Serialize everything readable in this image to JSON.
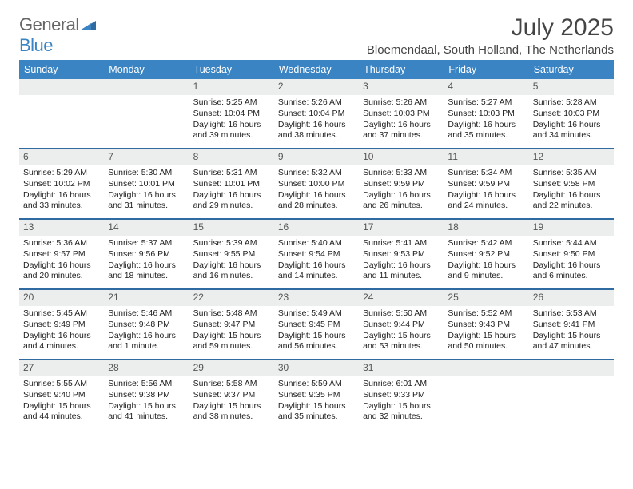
{
  "brand": {
    "general": "General",
    "blue": "Blue"
  },
  "title": "July 2025",
  "location": "Bloemendaal, South Holland, The Netherlands",
  "colors": {
    "header_blue": "#3b84c4",
    "divider": "#2f6aa0",
    "daynum_bg": "#eceded"
  },
  "dow": [
    "Sunday",
    "Monday",
    "Tuesday",
    "Wednesday",
    "Thursday",
    "Friday",
    "Saturday"
  ],
  "weeks": [
    [
      {
        "n": "",
        "sr": "",
        "ss": "",
        "dl1": "",
        "dl2": ""
      },
      {
        "n": "",
        "sr": "",
        "ss": "",
        "dl1": "",
        "dl2": ""
      },
      {
        "n": "1",
        "sr": "Sunrise: 5:25 AM",
        "ss": "Sunset: 10:04 PM",
        "dl1": "Daylight: 16 hours",
        "dl2": "and 39 minutes."
      },
      {
        "n": "2",
        "sr": "Sunrise: 5:26 AM",
        "ss": "Sunset: 10:04 PM",
        "dl1": "Daylight: 16 hours",
        "dl2": "and 38 minutes."
      },
      {
        "n": "3",
        "sr": "Sunrise: 5:26 AM",
        "ss": "Sunset: 10:03 PM",
        "dl1": "Daylight: 16 hours",
        "dl2": "and 37 minutes."
      },
      {
        "n": "4",
        "sr": "Sunrise: 5:27 AM",
        "ss": "Sunset: 10:03 PM",
        "dl1": "Daylight: 16 hours",
        "dl2": "and 35 minutes."
      },
      {
        "n": "5",
        "sr": "Sunrise: 5:28 AM",
        "ss": "Sunset: 10:03 PM",
        "dl1": "Daylight: 16 hours",
        "dl2": "and 34 minutes."
      }
    ],
    [
      {
        "n": "6",
        "sr": "Sunrise: 5:29 AM",
        "ss": "Sunset: 10:02 PM",
        "dl1": "Daylight: 16 hours",
        "dl2": "and 33 minutes."
      },
      {
        "n": "7",
        "sr": "Sunrise: 5:30 AM",
        "ss": "Sunset: 10:01 PM",
        "dl1": "Daylight: 16 hours",
        "dl2": "and 31 minutes."
      },
      {
        "n": "8",
        "sr": "Sunrise: 5:31 AM",
        "ss": "Sunset: 10:01 PM",
        "dl1": "Daylight: 16 hours",
        "dl2": "and 29 minutes."
      },
      {
        "n": "9",
        "sr": "Sunrise: 5:32 AM",
        "ss": "Sunset: 10:00 PM",
        "dl1": "Daylight: 16 hours",
        "dl2": "and 28 minutes."
      },
      {
        "n": "10",
        "sr": "Sunrise: 5:33 AM",
        "ss": "Sunset: 9:59 PM",
        "dl1": "Daylight: 16 hours",
        "dl2": "and 26 minutes."
      },
      {
        "n": "11",
        "sr": "Sunrise: 5:34 AM",
        "ss": "Sunset: 9:59 PM",
        "dl1": "Daylight: 16 hours",
        "dl2": "and 24 minutes."
      },
      {
        "n": "12",
        "sr": "Sunrise: 5:35 AM",
        "ss": "Sunset: 9:58 PM",
        "dl1": "Daylight: 16 hours",
        "dl2": "and 22 minutes."
      }
    ],
    [
      {
        "n": "13",
        "sr": "Sunrise: 5:36 AM",
        "ss": "Sunset: 9:57 PM",
        "dl1": "Daylight: 16 hours",
        "dl2": "and 20 minutes."
      },
      {
        "n": "14",
        "sr": "Sunrise: 5:37 AM",
        "ss": "Sunset: 9:56 PM",
        "dl1": "Daylight: 16 hours",
        "dl2": "and 18 minutes."
      },
      {
        "n": "15",
        "sr": "Sunrise: 5:39 AM",
        "ss": "Sunset: 9:55 PM",
        "dl1": "Daylight: 16 hours",
        "dl2": "and 16 minutes."
      },
      {
        "n": "16",
        "sr": "Sunrise: 5:40 AM",
        "ss": "Sunset: 9:54 PM",
        "dl1": "Daylight: 16 hours",
        "dl2": "and 14 minutes."
      },
      {
        "n": "17",
        "sr": "Sunrise: 5:41 AM",
        "ss": "Sunset: 9:53 PM",
        "dl1": "Daylight: 16 hours",
        "dl2": "and 11 minutes."
      },
      {
        "n": "18",
        "sr": "Sunrise: 5:42 AM",
        "ss": "Sunset: 9:52 PM",
        "dl1": "Daylight: 16 hours",
        "dl2": "and 9 minutes."
      },
      {
        "n": "19",
        "sr": "Sunrise: 5:44 AM",
        "ss": "Sunset: 9:50 PM",
        "dl1": "Daylight: 16 hours",
        "dl2": "and 6 minutes."
      }
    ],
    [
      {
        "n": "20",
        "sr": "Sunrise: 5:45 AM",
        "ss": "Sunset: 9:49 PM",
        "dl1": "Daylight: 16 hours",
        "dl2": "and 4 minutes."
      },
      {
        "n": "21",
        "sr": "Sunrise: 5:46 AM",
        "ss": "Sunset: 9:48 PM",
        "dl1": "Daylight: 16 hours",
        "dl2": "and 1 minute."
      },
      {
        "n": "22",
        "sr": "Sunrise: 5:48 AM",
        "ss": "Sunset: 9:47 PM",
        "dl1": "Daylight: 15 hours",
        "dl2": "and 59 minutes."
      },
      {
        "n": "23",
        "sr": "Sunrise: 5:49 AM",
        "ss": "Sunset: 9:45 PM",
        "dl1": "Daylight: 15 hours",
        "dl2": "and 56 minutes."
      },
      {
        "n": "24",
        "sr": "Sunrise: 5:50 AM",
        "ss": "Sunset: 9:44 PM",
        "dl1": "Daylight: 15 hours",
        "dl2": "and 53 minutes."
      },
      {
        "n": "25",
        "sr": "Sunrise: 5:52 AM",
        "ss": "Sunset: 9:43 PM",
        "dl1": "Daylight: 15 hours",
        "dl2": "and 50 minutes."
      },
      {
        "n": "26",
        "sr": "Sunrise: 5:53 AM",
        "ss": "Sunset: 9:41 PM",
        "dl1": "Daylight: 15 hours",
        "dl2": "and 47 minutes."
      }
    ],
    [
      {
        "n": "27",
        "sr": "Sunrise: 5:55 AM",
        "ss": "Sunset: 9:40 PM",
        "dl1": "Daylight: 15 hours",
        "dl2": "and 44 minutes."
      },
      {
        "n": "28",
        "sr": "Sunrise: 5:56 AM",
        "ss": "Sunset: 9:38 PM",
        "dl1": "Daylight: 15 hours",
        "dl2": "and 41 minutes."
      },
      {
        "n": "29",
        "sr": "Sunrise: 5:58 AM",
        "ss": "Sunset: 9:37 PM",
        "dl1": "Daylight: 15 hours",
        "dl2": "and 38 minutes."
      },
      {
        "n": "30",
        "sr": "Sunrise: 5:59 AM",
        "ss": "Sunset: 9:35 PM",
        "dl1": "Daylight: 15 hours",
        "dl2": "and 35 minutes."
      },
      {
        "n": "31",
        "sr": "Sunrise: 6:01 AM",
        "ss": "Sunset: 9:33 PM",
        "dl1": "Daylight: 15 hours",
        "dl2": "and 32 minutes."
      },
      {
        "n": "",
        "sr": "",
        "ss": "",
        "dl1": "",
        "dl2": ""
      },
      {
        "n": "",
        "sr": "",
        "ss": "",
        "dl1": "",
        "dl2": ""
      }
    ]
  ]
}
